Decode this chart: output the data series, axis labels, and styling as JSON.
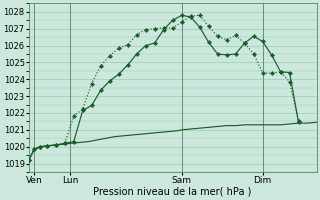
{
  "background_color": "#cce8dc",
  "grid_color": "#99ccb3",
  "line_color": "#1a5c2a",
  "title": "Pression niveau de la mer( hPa )",
  "ylim": [
    1018.5,
    1028.5
  ],
  "yticks": [
    1019,
    1020,
    1021,
    1022,
    1023,
    1024,
    1025,
    1026,
    1027,
    1028
  ],
  "xlim": [
    0,
    16
  ],
  "day_labels": [
    "Ven",
    "Lun",
    "Sam",
    "Dim"
  ],
  "day_positions": [
    0.3,
    2.3,
    8.5,
    13.0
  ],
  "vline_positions": [
    0.3,
    2.3,
    8.5,
    13.0
  ],
  "line_flat_x": [
    0,
    0.3,
    0.6,
    1.0,
    1.5,
    2.0,
    2.3,
    2.8,
    3.3,
    3.8,
    4.3,
    4.8,
    5.3,
    5.8,
    6.3,
    6.8,
    7.3,
    7.8,
    8.3,
    8.5,
    9.0,
    9.5,
    10.0,
    10.5,
    11.0,
    11.5,
    12.0,
    12.5,
    13.0,
    13.5,
    14.0,
    14.5,
    15.0,
    15.5,
    16.0
  ],
  "line_flat_y": [
    1019.2,
    1019.85,
    1019.95,
    1020.05,
    1020.1,
    1020.15,
    1020.2,
    1020.25,
    1020.3,
    1020.4,
    1020.5,
    1020.6,
    1020.65,
    1020.7,
    1020.75,
    1020.8,
    1020.85,
    1020.9,
    1020.95,
    1021.0,
    1021.05,
    1021.1,
    1021.15,
    1021.2,
    1021.25,
    1021.25,
    1021.3,
    1021.3,
    1021.3,
    1021.3,
    1021.3,
    1021.35,
    1021.4,
    1021.4,
    1021.45
  ],
  "line_dotted_x": [
    0,
    0.3,
    0.6,
    1.0,
    1.5,
    2.0,
    2.5,
    3.0,
    3.5,
    4.0,
    4.5,
    5.0,
    5.5,
    6.0,
    6.5,
    7.0,
    7.5,
    8.0,
    8.5,
    9.0,
    9.5,
    10.0,
    10.5,
    11.0,
    11.5,
    12.0,
    12.5,
    13.0,
    13.5,
    14.0,
    14.5,
    15.0
  ],
  "line_dotted_y": [
    1019.2,
    1019.85,
    1020.0,
    1020.05,
    1020.1,
    1020.2,
    1021.8,
    1022.25,
    1023.75,
    1024.8,
    1025.4,
    1025.85,
    1026.05,
    1026.65,
    1026.95,
    1027.0,
    1027.05,
    1027.05,
    1027.4,
    1027.75,
    1027.8,
    1027.15,
    1026.55,
    1026.35,
    1026.6,
    1026.15,
    1025.5,
    1024.4,
    1024.35,
    1024.45,
    1023.85,
    1021.5
  ],
  "line_solid_x": [
    0,
    0.3,
    0.6,
    1.0,
    1.5,
    2.0,
    2.5,
    3.0,
    3.5,
    4.0,
    4.5,
    5.0,
    5.5,
    6.0,
    6.5,
    7.0,
    7.5,
    8.0,
    8.5,
    9.0,
    9.5,
    10.0,
    10.5,
    11.0,
    11.5,
    12.0,
    12.5,
    13.0,
    13.5,
    14.0,
    14.5,
    15.0
  ],
  "line_solid_y": [
    1019.2,
    1019.85,
    1020.0,
    1020.05,
    1020.1,
    1020.2,
    1020.3,
    1022.15,
    1022.45,
    1023.35,
    1023.9,
    1024.3,
    1024.85,
    1025.5,
    1026.0,
    1026.15,
    1026.95,
    1027.5,
    1027.8,
    1027.7,
    1027.1,
    1026.2,
    1025.5,
    1025.45,
    1025.5,
    1026.15,
    1026.55,
    1026.25,
    1025.45,
    1024.45,
    1024.4,
    1021.45
  ]
}
